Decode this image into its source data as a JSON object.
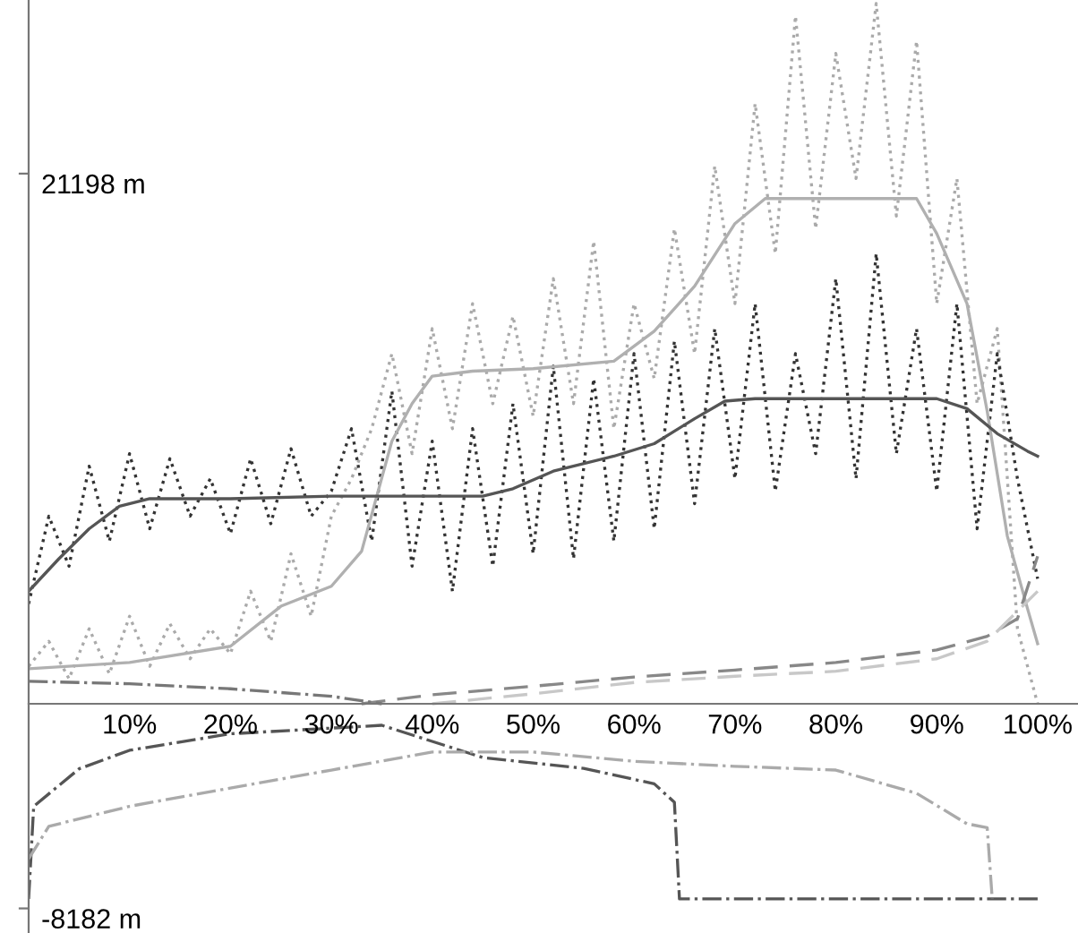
{
  "chart_data": {
    "type": "line",
    "xlim": [
      0,
      104
    ],
    "ylim": [
      -9165,
      28140
    ],
    "xticks": [
      {
        "value": 10,
        "label": "10%"
      },
      {
        "value": 20,
        "label": "20%"
      },
      {
        "value": 30,
        "label": "30%"
      },
      {
        "value": 40,
        "label": "40%"
      },
      {
        "value": 50,
        "label": "50%"
      },
      {
        "value": 60,
        "label": "60%"
      },
      {
        "value": 70,
        "label": "70%"
      },
      {
        "value": 80,
        "label": "80%"
      },
      {
        "value": 90,
        "label": "90%"
      },
      {
        "value": 100,
        "label": "100%"
      }
    ],
    "yticks": [
      {
        "value": 21198,
        "label": "21198 m"
      },
      {
        "value": -8182,
        "label": "-8182 m"
      }
    ],
    "grid": false,
    "legend": false,
    "marker": "none",
    "series": [
      {
        "color": "#aaaaaa",
        "line_style": "dotted",
        "x": [
          0,
          2,
          4,
          6,
          8,
          10,
          12,
          14,
          16,
          18,
          20,
          22,
          24,
          26,
          28,
          30,
          32,
          34,
          36,
          38,
          40,
          42,
          44,
          46,
          48,
          50,
          52,
          54,
          56,
          58,
          60,
          62,
          64,
          66,
          68,
          70,
          72,
          74,
          76,
          78,
          80,
          82,
          84,
          86,
          88,
          90,
          92,
          94,
          96,
          98,
          100
        ],
        "values": [
          1500,
          2500,
          1000,
          3000,
          1200,
          3500,
          1500,
          3200,
          1800,
          3000,
          2000,
          4500,
          2500,
          6000,
          3500,
          7500,
          9000,
          11000,
          14000,
          10000,
          15000,
          11000,
          16000,
          12000,
          15500,
          11500,
          17000,
          12000,
          18500,
          11000,
          16000,
          13000,
          19000,
          14000,
          21500,
          16000,
          24000,
          18000,
          27500,
          19000,
          26000,
          21000,
          28000,
          19500,
          26500,
          16000,
          21000,
          12000,
          15000,
          3000,
          0
        ]
      },
      {
        "color": "#333333",
        "line_style": "dotted",
        "x": [
          0,
          2,
          4,
          6,
          8,
          10,
          12,
          14,
          16,
          18,
          20,
          22,
          24,
          26,
          28,
          30,
          32,
          34,
          36,
          38,
          40,
          42,
          44,
          46,
          48,
          50,
          52,
          54,
          56,
          58,
          60,
          62,
          64,
          66,
          68,
          70,
          72,
          74,
          76,
          78,
          80,
          82,
          84,
          86,
          88,
          90,
          92,
          94,
          96,
          98,
          100
        ],
        "values": [
          4000,
          7500,
          5500,
          9500,
          6500,
          10000,
          7000,
          9800,
          7500,
          9000,
          6800,
          9800,
          7200,
          10200,
          7500,
          8500,
          11000,
          6500,
          12500,
          5500,
          10500,
          4500,
          11000,
          5500,
          12000,
          6000,
          13500,
          5800,
          13000,
          6500,
          14000,
          7000,
          14500,
          8000,
          15000,
          9000,
          16000,
          8500,
          14000,
          10000,
          17000,
          9000,
          18000,
          10000,
          15000,
          8500,
          16000,
          7000,
          14000,
          9000,
          5000
        ]
      },
      {
        "color": "#b0b0b0",
        "line_style": "solid",
        "x": [
          0,
          10,
          20,
          25,
          30,
          33,
          36,
          38,
          40,
          44,
          50,
          58,
          62,
          66,
          70,
          73,
          80,
          88,
          90,
          93,
          95,
          97,
          99,
          100
        ],
        "values": [
          1400,
          1650,
          2300,
          3900,
          4700,
          6100,
          10500,
          12000,
          13100,
          13300,
          13400,
          13700,
          14900,
          16700,
          19200,
          20200,
          20200,
          20200,
          18800,
          16000,
          11700,
          6700,
          3800,
          2400
        ]
      },
      {
        "color": "#555555",
        "line_style": "solid",
        "x": [
          0,
          3,
          6,
          9,
          12,
          20,
          30,
          40,
          45,
          48,
          52,
          58,
          62,
          66,
          69,
          72,
          80,
          90,
          93,
          96,
          99,
          100
        ],
        "values": [
          4500,
          5800,
          7000,
          7900,
          8200,
          8200,
          8300,
          8300,
          8300,
          8600,
          9300,
          9900,
          10400,
          11400,
          12100,
          12200,
          12200,
          12200,
          11800,
          10800,
          10100,
          9900
        ]
      },
      {
        "color": "#888888",
        "line_style": "dashed",
        "x": [
          33,
          40,
          50,
          60,
          70,
          80,
          90,
          95,
          98,
          100
        ],
        "values": [
          0,
          360,
          700,
          1070,
          1350,
          1650,
          2150,
          2700,
          3400,
          5900
        ]
      },
      {
        "color": "#c8c8c8",
        "line_style": "dashed",
        "x": [
          40,
          50,
          60,
          70,
          80,
          90,
          95,
          100
        ],
        "values": [
          0,
          400,
          850,
          1100,
          1300,
          1800,
          2500,
          4500
        ]
      },
      {
        "color": "#777777",
        "line_style": "dashdot",
        "x": [
          0,
          5,
          10,
          20,
          30,
          35
        ],
        "values": [
          900,
          850,
          800,
          600,
          300,
          0
        ]
      },
      {
        "color": "#555555",
        "line_style": "dashdot",
        "x": [
          0,
          0.5,
          5,
          10,
          20,
          35,
          45,
          55,
          62,
          64,
          64.5,
          100
        ],
        "values": [
          -7800,
          -4100,
          -2600,
          -1860,
          -1200,
          -860,
          -2150,
          -2580,
          -3200,
          -3940,
          -7800,
          -7800
        ]
      },
      {
        "color": "#aaaaaa",
        "line_style": "dashdot",
        "x": [
          0,
          2,
          10,
          20,
          30,
          40,
          50,
          60,
          70,
          80,
          88,
          93,
          95,
          95.5
        ],
        "values": [
          -6200,
          -4900,
          -4100,
          -3370,
          -2650,
          -1930,
          -1930,
          -2300,
          -2500,
          -2650,
          -3580,
          -4800,
          -4950,
          -7800
        ]
      }
    ]
  }
}
